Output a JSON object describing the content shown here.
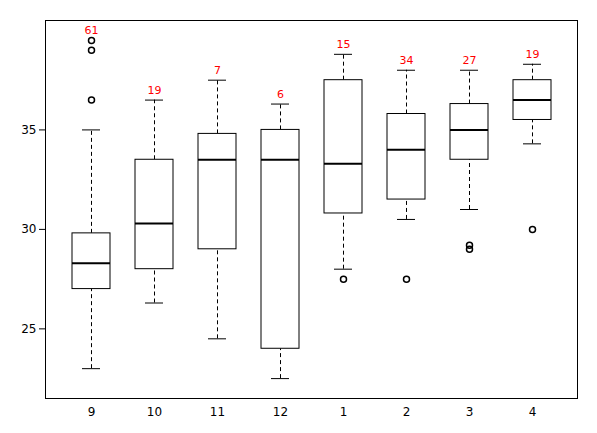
{
  "chart_data": {
    "type": "box",
    "categories": [
      "9",
      "10",
      "11",
      "12",
      "1",
      "2",
      "3",
      "4"
    ],
    "q1": [
      27.0,
      28.0,
      29.0,
      24.0,
      30.8,
      31.5,
      33.5,
      35.5
    ],
    "median": [
      28.3,
      30.3,
      33.5,
      33.5,
      33.3,
      34.0,
      35.0,
      36.5
    ],
    "q3": [
      29.8,
      33.5,
      34.8,
      35.0,
      37.5,
      35.8,
      36.3,
      37.5
    ],
    "whislo": [
      23.0,
      26.3,
      24.5,
      22.5,
      28.0,
      30.5,
      31.0,
      34.3
    ],
    "whishi": [
      35.0,
      36.5,
      37.5,
      36.3,
      38.8,
      38.0,
      38.0,
      38.3
    ],
    "fliers": [
      [
        39.5,
        39.0,
        36.5
      ],
      [],
      [],
      [],
      [
        27.5
      ],
      [
        27.5
      ],
      [
        29.0,
        29.2
      ],
      [
        30.0
      ]
    ],
    "counts": {
      "values": [
        61,
        19,
        7,
        6,
        15,
        34,
        27,
        19
      ],
      "color": "#ff0000"
    },
    "ylim": [
      21.5,
      40.5
    ],
    "yticks": [
      25,
      30,
      35
    ]
  }
}
